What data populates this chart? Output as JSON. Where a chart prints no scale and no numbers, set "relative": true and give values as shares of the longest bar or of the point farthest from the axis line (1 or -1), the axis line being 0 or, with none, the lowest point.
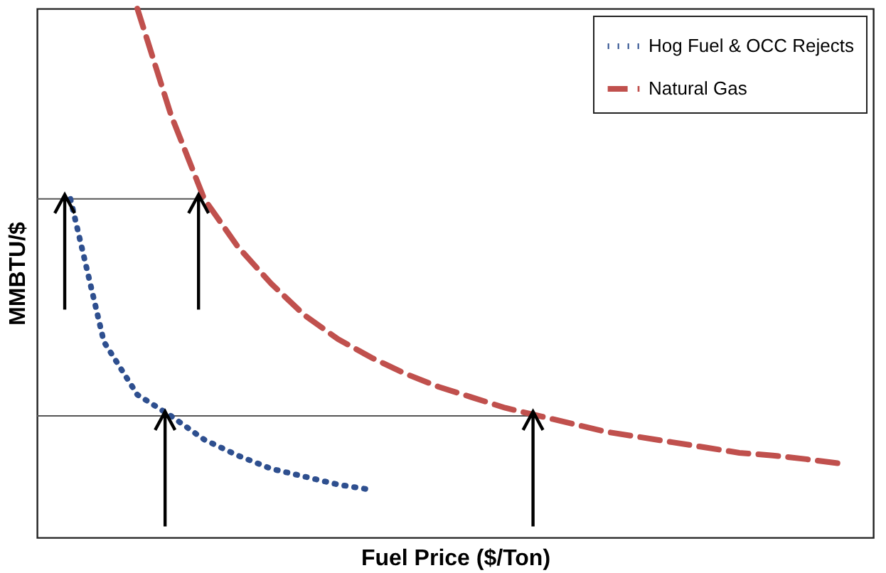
{
  "chart_data": {
    "type": "line",
    "relative": true,
    "xlabel": "Fuel Price ($/Ton)",
    "ylabel": "MMBTU/$",
    "legend": "top right",
    "marker": "none",
    "categories": [
      null,
      null,
      null,
      null,
      null,
      null,
      null,
      null,
      null,
      null,
      null,
      null,
      null,
      null,
      null,
      null,
      null,
      null,
      null,
      null,
      null,
      null,
      null,
      null
    ],
    "series": [
      {
        "name": "Hog Fuel & OCC Rejects",
        "color": "#2e4f8f",
        "line_style": "dotted",
        "values": [
          0.64,
          0.37,
          0.27,
          0.23,
          0.185,
          0.155,
          0.13,
          0.115,
          0.1,
          0.09,
          null,
          null,
          null,
          null,
          null,
          null,
          null,
          null,
          null,
          null,
          null,
          null,
          null,
          null
        ]
      },
      {
        "name": "Natural Gas",
        "color": "#c0504d",
        "line_style": "dashed",
        "values": [
          null,
          null,
          1.0,
          0.8,
          0.64,
          0.55,
          0.48,
          0.42,
          0.375,
          0.34,
          0.31,
          0.285,
          0.265,
          0.245,
          0.23,
          0.215,
          0.2,
          0.19,
          0.18,
          0.17,
          0.16,
          0.155,
          0.148,
          0.14
        ]
      }
    ],
    "ref_lines": [
      {
        "axis": "y",
        "value": 0.64
      },
      {
        "axis": "y",
        "value": 0.23
      }
    ]
  }
}
